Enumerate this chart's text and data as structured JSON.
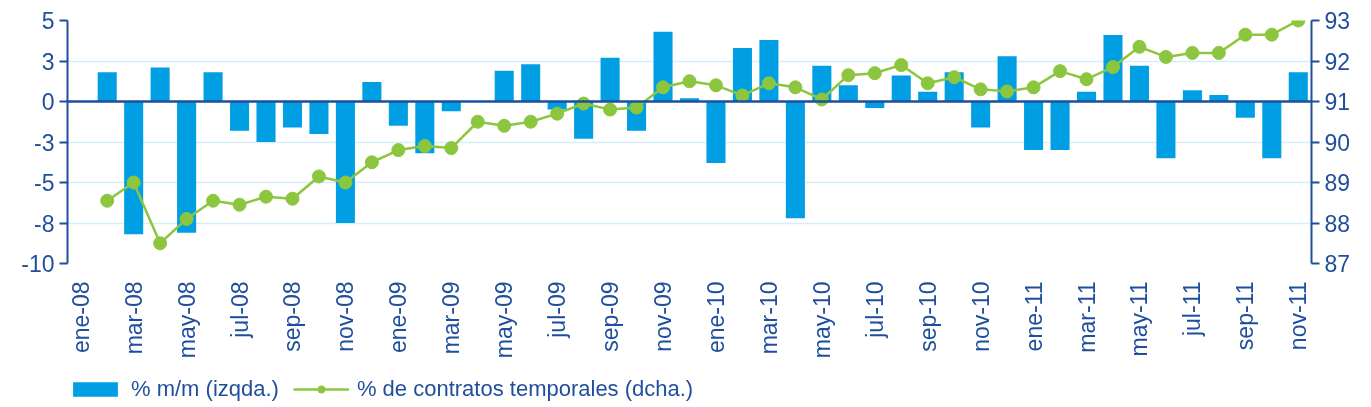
{
  "chart_data": {
    "type": "bar",
    "categories": [
      "ene-08",
      null,
      "mar-08",
      null,
      "may-08",
      null,
      "jul-08",
      null,
      "sep-08",
      null,
      "nov-08",
      null,
      "ene-09",
      null,
      "mar-09",
      null,
      "may-09",
      null,
      "jul-09",
      null,
      "sep-09",
      null,
      "nov-09",
      null,
      "ene-10",
      null,
      "mar-10",
      null,
      "may-10",
      null,
      "jul-10",
      null,
      "sep-10",
      null,
      "nov-10",
      null,
      "ene-11",
      null,
      "mar-11",
      null,
      "may-11",
      null,
      "jul-11",
      null,
      "sep-11",
      null,
      "nov-11"
    ],
    "series": [
      {
        "name": "% m/m (izqda.)",
        "color": "#009fe3",
        "values": [
          null,
          1.8,
          -8.2,
          2.1,
          -8.1,
          1.8,
          -1.8,
          -2.5,
          -1.6,
          -2.0,
          -7.5,
          1.2,
          -1.5,
          -3.2,
          -0.6,
          null,
          1.9,
          2.3,
          -0.5,
          -2.3,
          2.7,
          -1.8,
          4.3,
          0.2,
          -3.8,
          3.3,
          3.8,
          -7.2,
          2.2,
          1.0,
          -0.4,
          1.6,
          0.6,
          1.8,
          -1.6,
          2.8,
          -3.0,
          -3.0,
          0.6,
          4.1,
          2.2,
          -3.5,
          0.7,
          0.4,
          -1.0,
          -3.5,
          1.8
        ]
      },
      {
        "name": "% de contratos temporales (dcha.)",
        "type": "line",
        "axis": "y2",
        "marker": "circle",
        "color": "#8cc63f",
        "values": [
          null,
          88.55,
          89.0,
          87.5,
          88.1,
          88.55,
          88.45,
          88.65,
          88.6,
          89.15,
          89.0,
          89.5,
          89.8,
          89.9,
          89.85,
          90.5,
          90.4,
          90.5,
          90.7,
          90.95,
          90.8,
          90.85,
          91.35,
          91.5,
          91.4,
          91.15,
          91.45,
          91.35,
          91.05,
          91.65,
          91.7,
          91.9,
          91.45,
          91.6,
          91.3,
          91.25,
          91.35,
          91.75,
          91.55,
          91.85,
          92.35,
          92.1,
          92.2,
          92.2,
          92.65,
          92.65,
          93.0
        ]
      }
    ],
    "ylim": [
      -10,
      5
    ],
    "yticks": [
      -10,
      {
        "value": -7.5,
        "label": "-8"
      },
      -5,
      {
        "value": -2.5,
        "label": "-3"
      },
      0,
      {
        "value": 2.5,
        "label": "3"
      },
      5
    ],
    "y2lim": [
      87,
      93
    ],
    "y2ticks": [
      87,
      88,
      89,
      90,
      91,
      92,
      93
    ],
    "ref_lines": [
      {
        "axis": "y",
        "value": 0,
        "color": "#1f4e9c"
      }
    ],
    "grid": "y",
    "legend": "bottom left"
  }
}
